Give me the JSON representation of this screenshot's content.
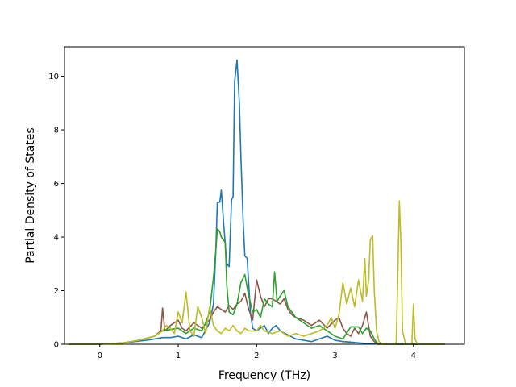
{
  "chart_data": {
    "type": "line",
    "title": "",
    "xlabel": "Frequency (THz)",
    "ylabel": "Partial Density of States",
    "xlim": [
      -0.45,
      4.65
    ],
    "ylim": [
      0,
      11.1
    ],
    "xticks": [
      "0",
      "1",
      "2",
      "3",
      "4"
    ],
    "yticks": [
      "0",
      "2",
      "4",
      "6",
      "8",
      "10"
    ],
    "grid": false,
    "legend": "none",
    "series": [
      {
        "color": "#1f77b4",
        "points": [
          [
            -0.4,
            0
          ],
          [
            0,
            0
          ],
          [
            0.3,
            0.05
          ],
          [
            0.6,
            0.15
          ],
          [
            0.7,
            0.2
          ],
          [
            0.8,
            0.25
          ],
          [
            0.9,
            0.25
          ],
          [
            1.0,
            0.3
          ],
          [
            1.1,
            0.2
          ],
          [
            1.2,
            0.35
          ],
          [
            1.3,
            0.25
          ],
          [
            1.4,
            0.8
          ],
          [
            1.45,
            1.5
          ],
          [
            1.48,
            3.5
          ],
          [
            1.5,
            5.3
          ],
          [
            1.53,
            5.3
          ],
          [
            1.55,
            5.75
          ],
          [
            1.58,
            4.5
          ],
          [
            1.62,
            3.0
          ],
          [
            1.65,
            2.9
          ],
          [
            1.68,
            5.4
          ],
          [
            1.7,
            5.5
          ],
          [
            1.72,
            9.8
          ],
          [
            1.75,
            10.6
          ],
          [
            1.78,
            9.0
          ],
          [
            1.8,
            7.0
          ],
          [
            1.83,
            4.5
          ],
          [
            1.85,
            3.3
          ],
          [
            1.88,
            3.2
          ],
          [
            1.92,
            1.2
          ],
          [
            1.95,
            0.6
          ],
          [
            2.0,
            0.5
          ],
          [
            2.1,
            0.7
          ],
          [
            2.15,
            0.4
          ],
          [
            2.2,
            0.6
          ],
          [
            2.25,
            0.7
          ],
          [
            2.3,
            0.5
          ],
          [
            2.4,
            0.35
          ],
          [
            2.5,
            0.2
          ],
          [
            2.6,
            0.15
          ],
          [
            2.7,
            0.1
          ],
          [
            2.8,
            0.2
          ],
          [
            2.9,
            0.3
          ],
          [
            3.0,
            0.15
          ],
          [
            3.1,
            0.1
          ],
          [
            3.2,
            0.08
          ],
          [
            3.3,
            0.05
          ],
          [
            3.4,
            0.03
          ],
          [
            3.5,
            0.02
          ],
          [
            3.6,
            0
          ],
          [
            4.4,
            0
          ]
        ]
      },
      {
        "color": "#8c564b",
        "points": [
          [
            -0.4,
            0
          ],
          [
            0,
            0
          ],
          [
            0.3,
            0.05
          ],
          [
            0.5,
            0.15
          ],
          [
            0.7,
            0.3
          ],
          [
            0.78,
            0.5
          ],
          [
            0.8,
            1.35
          ],
          [
            0.83,
            0.5
          ],
          [
            0.9,
            0.7
          ],
          [
            1.0,
            0.9
          ],
          [
            1.05,
            0.6
          ],
          [
            1.1,
            0.5
          ],
          [
            1.2,
            0.8
          ],
          [
            1.3,
            0.6
          ],
          [
            1.4,
            0.9
          ],
          [
            1.45,
            1.2
          ],
          [
            1.5,
            1.4
          ],
          [
            1.55,
            1.3
          ],
          [
            1.6,
            1.2
          ],
          [
            1.65,
            1.45
          ],
          [
            1.7,
            1.3
          ],
          [
            1.75,
            1.5
          ],
          [
            1.8,
            1.6
          ],
          [
            1.85,
            1.9
          ],
          [
            1.9,
            1.3
          ],
          [
            1.95,
            0.9
          ],
          [
            2.0,
            2.4
          ],
          [
            2.05,
            1.8
          ],
          [
            2.1,
            1.4
          ],
          [
            2.15,
            1.7
          ],
          [
            2.2,
            1.7
          ],
          [
            2.25,
            1.6
          ],
          [
            2.3,
            1.5
          ],
          [
            2.35,
            1.7
          ],
          [
            2.4,
            1.3
          ],
          [
            2.45,
            1.1
          ],
          [
            2.5,
            1.0
          ],
          [
            2.6,
            0.9
          ],
          [
            2.7,
            0.7
          ],
          [
            2.8,
            0.9
          ],
          [
            2.9,
            0.6
          ],
          [
            3.0,
            0.9
          ],
          [
            3.05,
            1.0
          ],
          [
            3.1,
            0.6
          ],
          [
            3.15,
            0.4
          ],
          [
            3.2,
            0.3
          ],
          [
            3.25,
            0.6
          ],
          [
            3.3,
            0.4
          ],
          [
            3.35,
            0.7
          ],
          [
            3.4,
            1.2
          ],
          [
            3.45,
            0.3
          ],
          [
            3.5,
            0.1
          ],
          [
            3.55,
            0
          ],
          [
            4.4,
            0
          ]
        ]
      },
      {
        "color": "#2ca02c",
        "points": [
          [
            -0.4,
            0
          ],
          [
            0,
            0
          ],
          [
            0.3,
            0.05
          ],
          [
            0.5,
            0.15
          ],
          [
            0.7,
            0.3
          ],
          [
            0.8,
            0.5
          ],
          [
            0.9,
            0.55
          ],
          [
            1.0,
            0.6
          ],
          [
            1.05,
            0.5
          ],
          [
            1.1,
            0.4
          ],
          [
            1.2,
            0.6
          ],
          [
            1.3,
            0.5
          ],
          [
            1.35,
            0.8
          ],
          [
            1.4,
            1.2
          ],
          [
            1.45,
            2.5
          ],
          [
            1.48,
            3.5
          ],
          [
            1.5,
            4.3
          ],
          [
            1.53,
            4.2
          ],
          [
            1.55,
            4.0
          ],
          [
            1.6,
            3.8
          ],
          [
            1.62,
            2.2
          ],
          [
            1.65,
            1.2
          ],
          [
            1.7,
            1.1
          ],
          [
            1.75,
            1.5
          ],
          [
            1.8,
            2.3
          ],
          [
            1.85,
            2.6
          ],
          [
            1.9,
            1.8
          ],
          [
            1.95,
            1.2
          ],
          [
            2.0,
            1.3
          ],
          [
            2.05,
            1.0
          ],
          [
            2.1,
            1.7
          ],
          [
            2.15,
            1.5
          ],
          [
            2.2,
            1.4
          ],
          [
            2.23,
            2.7
          ],
          [
            2.26,
            1.6
          ],
          [
            2.3,
            1.8
          ],
          [
            2.35,
            2.0
          ],
          [
            2.4,
            1.4
          ],
          [
            2.45,
            1.2
          ],
          [
            2.5,
            1.0
          ],
          [
            2.6,
            0.8
          ],
          [
            2.7,
            0.6
          ],
          [
            2.8,
            0.7
          ],
          [
            2.9,
            0.5
          ],
          [
            3.0,
            0.3
          ],
          [
            3.1,
            0.2
          ],
          [
            3.2,
            0.65
          ],
          [
            3.3,
            0.65
          ],
          [
            3.35,
            0.4
          ],
          [
            3.4,
            0.6
          ],
          [
            3.45,
            0.5
          ],
          [
            3.5,
            0.2
          ],
          [
            3.55,
            0
          ],
          [
            4.4,
            0
          ]
        ]
      },
      {
        "color": "#bcbd22",
        "points": [
          [
            -0.4,
            0
          ],
          [
            0,
            0
          ],
          [
            0.3,
            0.05
          ],
          [
            0.5,
            0.15
          ],
          [
            0.7,
            0.3
          ],
          [
            0.8,
            0.5
          ],
          [
            0.85,
            0.7
          ],
          [
            0.9,
            0.6
          ],
          [
            0.95,
            0.4
          ],
          [
            1.0,
            1.2
          ],
          [
            1.05,
            0.8
          ],
          [
            1.1,
            1.95
          ],
          [
            1.15,
            0.5
          ],
          [
            1.2,
            0.3
          ],
          [
            1.25,
            1.4
          ],
          [
            1.3,
            1.0
          ],
          [
            1.35,
            0.4
          ],
          [
            1.4,
            1.4
          ],
          [
            1.45,
            0.7
          ],
          [
            1.5,
            0.5
          ],
          [
            1.55,
            0.4
          ],
          [
            1.6,
            0.6
          ],
          [
            1.65,
            0.5
          ],
          [
            1.7,
            0.7
          ],
          [
            1.75,
            0.5
          ],
          [
            1.8,
            0.4
          ],
          [
            1.85,
            0.6
          ],
          [
            1.9,
            0.5
          ],
          [
            2.0,
            0.5
          ],
          [
            2.05,
            0.7
          ],
          [
            2.1,
            0.5
          ],
          [
            2.2,
            0.4
          ],
          [
            2.3,
            0.5
          ],
          [
            2.4,
            0.3
          ],
          [
            2.5,
            0.4
          ],
          [
            2.6,
            0.3
          ],
          [
            2.7,
            0.4
          ],
          [
            2.8,
            0.5
          ],
          [
            2.9,
            0.7
          ],
          [
            2.95,
            1.0
          ],
          [
            3.0,
            0.6
          ],
          [
            3.05,
            1.1
          ],
          [
            3.1,
            2.3
          ],
          [
            3.15,
            1.5
          ],
          [
            3.2,
            2.1
          ],
          [
            3.25,
            1.4
          ],
          [
            3.3,
            2.4
          ],
          [
            3.35,
            1.6
          ],
          [
            3.38,
            3.2
          ],
          [
            3.4,
            1.8
          ],
          [
            3.43,
            2.4
          ],
          [
            3.45,
            3.9
          ],
          [
            3.48,
            4.05
          ],
          [
            3.5,
            2.0
          ],
          [
            3.53,
            0.5
          ],
          [
            3.56,
            0.1
          ],
          [
            3.6,
            0
          ],
          [
            3.78,
            0
          ],
          [
            3.8,
            2.5
          ],
          [
            3.82,
            5.35
          ],
          [
            3.84,
            3.8
          ],
          [
            3.86,
            0.5
          ],
          [
            3.9,
            0
          ],
          [
            3.98,
            0
          ],
          [
            4.0,
            1.5
          ],
          [
            4.02,
            0.2
          ],
          [
            4.05,
            0
          ],
          [
            4.4,
            0
          ]
        ]
      }
    ]
  }
}
